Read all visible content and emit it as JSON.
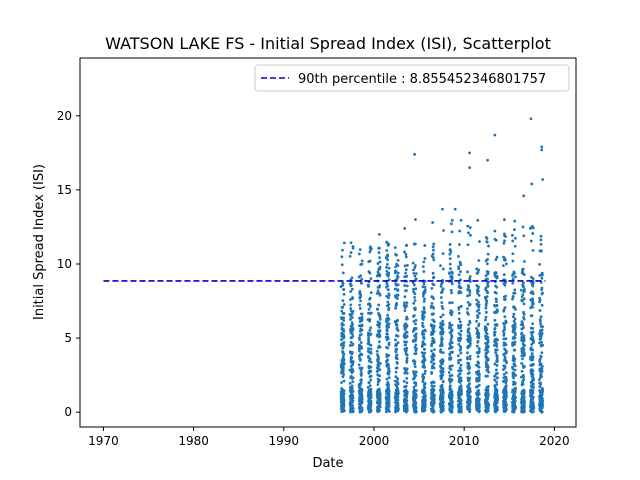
{
  "chart_data": {
    "type": "scatter",
    "title": "WATSON LAKE FS - Initial Spread Index (ISI), Scatterplot",
    "xlabel": "Date",
    "ylabel": "Initial Spread Index (ISI)",
    "xlim": [
      1967.4,
      2022.4
    ],
    "ylim": [
      -1.0,
      23.9
    ],
    "xticks": [
      1970,
      1980,
      1990,
      2000,
      2010,
      2020
    ],
    "yticks": [
      0,
      5,
      10,
      15,
      20
    ],
    "grid": false,
    "legend_position": "top-right",
    "point_color": "#1f77b4",
    "reference_line": {
      "label": "90th percentile : 8.855452346801757",
      "value": 8.855452346801757,
      "x_start": 1970,
      "x_end": 2019,
      "color": "#0000cc",
      "style": "dashed"
    },
    "season_start_year": 1996,
    "season_end_year": 2018,
    "series": [
      {
        "notable_points": [
          {
            "x": 2004.5,
            "y": 17.4
          },
          {
            "x": 2010.6,
            "y": 17.5
          },
          {
            "x": 2010.6,
            "y": 16.5
          },
          {
            "x": 2012.6,
            "y": 17.0
          },
          {
            "x": 2013.4,
            "y": 18.7
          },
          {
            "x": 2017.4,
            "y": 19.8
          },
          {
            "x": 2018.6,
            "y": 17.9
          },
          {
            "x": 2018.6,
            "y": 17.7
          },
          {
            "x": 2017.5,
            "y": 15.4
          },
          {
            "x": 2018.7,
            "y": 15.7
          },
          {
            "x": 2016.6,
            "y": 14.6
          },
          {
            "x": 2009.0,
            "y": 13.7
          },
          {
            "x": 2007.6,
            "y": 13.7
          },
          {
            "x": 2006.5,
            "y": 12.8
          },
          {
            "x": 2004.6,
            "y": 13.0
          },
          {
            "x": 2003.4,
            "y": 12.4
          },
          {
            "x": 2000.6,
            "y": 12.0
          },
          {
            "x": 1999.6,
            "y": 11.1
          },
          {
            "x": 2001.5,
            "y": 11.4
          },
          {
            "x": 2002.5,
            "y": 10.6
          },
          {
            "x": 1996.6,
            "y": 9.4
          },
          {
            "x": 1997.6,
            "y": 8.3
          }
        ]
      }
    ]
  }
}
